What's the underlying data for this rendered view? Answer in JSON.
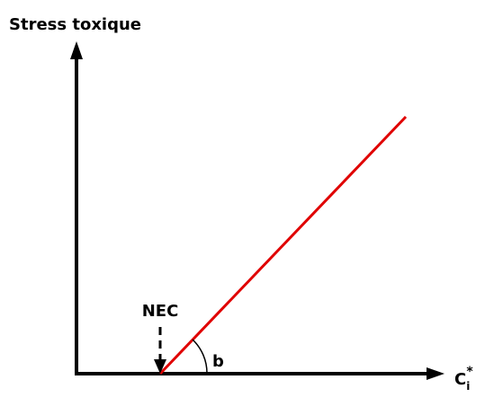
{
  "y_axis_label": "Stress toxique",
  "x_axis_label": {
    "base": "C",
    "subscript": "i",
    "superscript": "*"
  },
  "threshold_label": "NEC",
  "slope_label": "b"
}
